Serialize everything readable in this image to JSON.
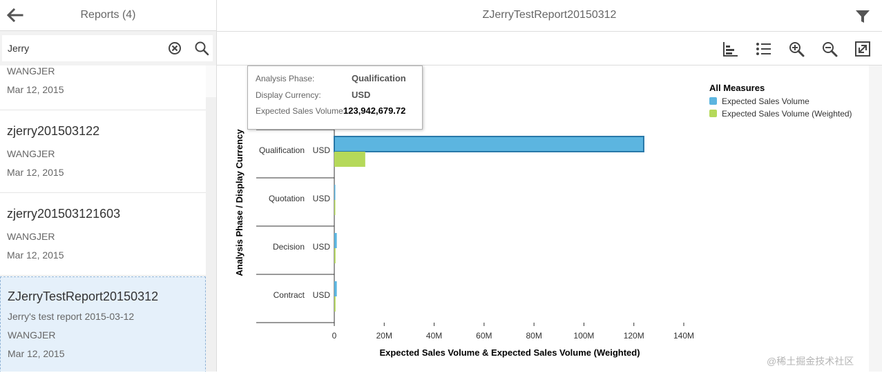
{
  "left_panel": {
    "title": "Reports (4)",
    "search": {
      "value": "Jerry"
    }
  },
  "reports": [
    {
      "title": "",
      "description": "",
      "owner": "WANGJER",
      "date": "Mar 12, 2015"
    },
    {
      "title": "zjerry201503122",
      "description": "",
      "owner": "WANGJER",
      "date": "Mar 12, 2015"
    },
    {
      "title": "zjerry201503121603",
      "description": "",
      "owner": "WANGJER",
      "date": "Mar 12, 2015"
    },
    {
      "title": "ZJerryTestReport20150312",
      "description": "Jerry's test report 2015-03-12",
      "owner": "WANGJER",
      "date": "Mar 12, 2015",
      "selected": true
    }
  ],
  "right_panel": {
    "title": "ZJerryTestReport20150312"
  },
  "toolbar": {
    "icons": [
      "bar-chart-icon",
      "list-icon",
      "zoom-in-icon",
      "zoom-out-icon",
      "fullscreen-icon"
    ]
  },
  "tooltip": {
    "rows": [
      {
        "key": "Analysis Phase:",
        "value": "Qualification"
      },
      {
        "key": "Display Currency:",
        "value": "USD"
      },
      {
        "key": "Expected Sales Volume:",
        "value": "123,942,679.72"
      }
    ]
  },
  "chart_data": {
    "type": "bar",
    "orientation": "horizontal",
    "categories": [
      "Qualification",
      "Quotation",
      "Decision",
      "Contract"
    ],
    "category_currency": "USD",
    "series": [
      {
        "name": "Expected Sales Volume",
        "color": "#5cb5e0",
        "values": [
          123942679.72,
          300000,
          1000000,
          1000000
        ]
      },
      {
        "name": "Expected Sales Volume (Weighted)",
        "color": "#b5d95a",
        "values": [
          12400000,
          100000,
          500000,
          500000
        ]
      }
    ],
    "xlabel": "Expected Sales Volume & Expected Sales Volume (Weighted)",
    "ylabel": "Analysis Phase / Display Currency",
    "xlim": [
      0,
      140000000
    ],
    "xticks": [
      {
        "value": 0,
        "label": "0"
      },
      {
        "value": 20000000,
        "label": "20M"
      },
      {
        "value": 40000000,
        "label": "40M"
      },
      {
        "value": 60000000,
        "label": "60M"
      },
      {
        "value": 80000000,
        "label": "80M"
      },
      {
        "value": 100000000,
        "label": "100M"
      },
      {
        "value": 120000000,
        "label": "120M"
      },
      {
        "value": 140000000,
        "label": "140M"
      }
    ],
    "legend": {
      "title": "All Measures",
      "placement": "top-right"
    },
    "highlighted": {
      "category": 0,
      "series": 0
    }
  },
  "watermark": "@稀土掘金技术社区"
}
